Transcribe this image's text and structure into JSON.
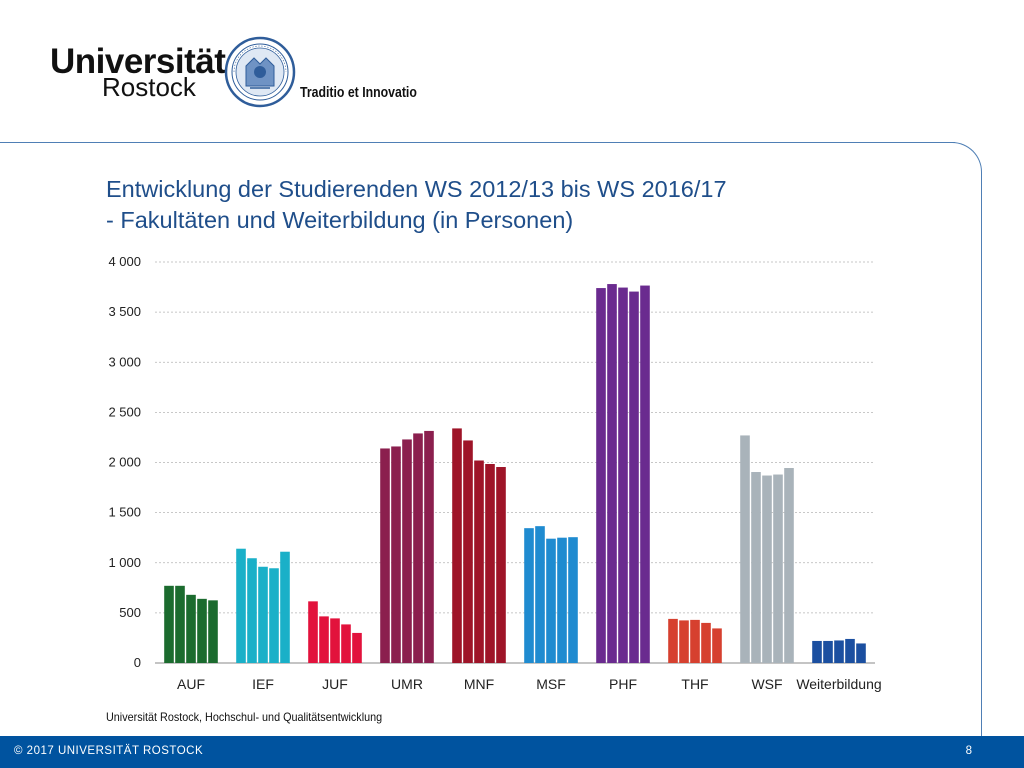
{
  "logo": {
    "line1": "Universität",
    "line2": "Rostock",
    "motto": "Traditio et Innovatio",
    "seal_icon": "university-seal-icon"
  },
  "slide": {
    "title_line1": "Entwicklung der Studierenden WS 2012/13 bis WS 2016/17",
    "title_line2": "- Fakultäten und Weiterbildung (in Personen)",
    "source": "Universität Rostock, Hochschul- und Qualitätsentwicklung"
  },
  "footer": {
    "copyright": "© 2017 UNIVERSITÄT ROSTOCK",
    "page_number": "8"
  },
  "chart_data": {
    "type": "bar",
    "title": "Entwicklung der Studierenden WS 2012/13 bis WS 2016/17 - Fakultäten und Weiterbildung (in Personen)",
    "xlabel": "",
    "ylabel": "",
    "ylim": [
      0,
      4000
    ],
    "yticks": [
      0,
      500,
      1000,
      1500,
      2000,
      2500,
      3000,
      3500,
      4000
    ],
    "ytick_labels": [
      "0",
      "500",
      "1 000",
      "1 500",
      "2 000",
      "2 500",
      "3 000",
      "3 500",
      "4 000"
    ],
    "grid": true,
    "legend": "none",
    "categories": [
      "AUF",
      "IEF",
      "JUF",
      "UMR",
      "MNF",
      "MSF",
      "PHF",
      "THF",
      "WSF",
      "Weiterbildung"
    ],
    "colors": [
      "#1b6b2e",
      "#1ab0c8",
      "#e2123c",
      "#8b1f4e",
      "#9e1428",
      "#1f8bd0",
      "#6a2b8f",
      "#d6402f",
      "#a9b3ba",
      "#1b4fa0"
    ],
    "values": [
      [
        770,
        770,
        680,
        640,
        625
      ],
      [
        1140,
        1045,
        960,
        945,
        1110
      ],
      [
        615,
        465,
        445,
        385,
        300
      ],
      [
        2140,
        2160,
        2230,
        2290,
        2315
      ],
      [
        2340,
        2220,
        2020,
        1985,
        1955
      ],
      [
        1345,
        1365,
        1240,
        1250,
        1255
      ],
      [
        3740,
        3780,
        3745,
        3705,
        3765
      ],
      [
        440,
        425,
        430,
        400,
        345
      ],
      [
        2270,
        1905,
        1870,
        1880,
        1945
      ],
      [
        220,
        220,
        225,
        240,
        195
      ]
    ]
  }
}
